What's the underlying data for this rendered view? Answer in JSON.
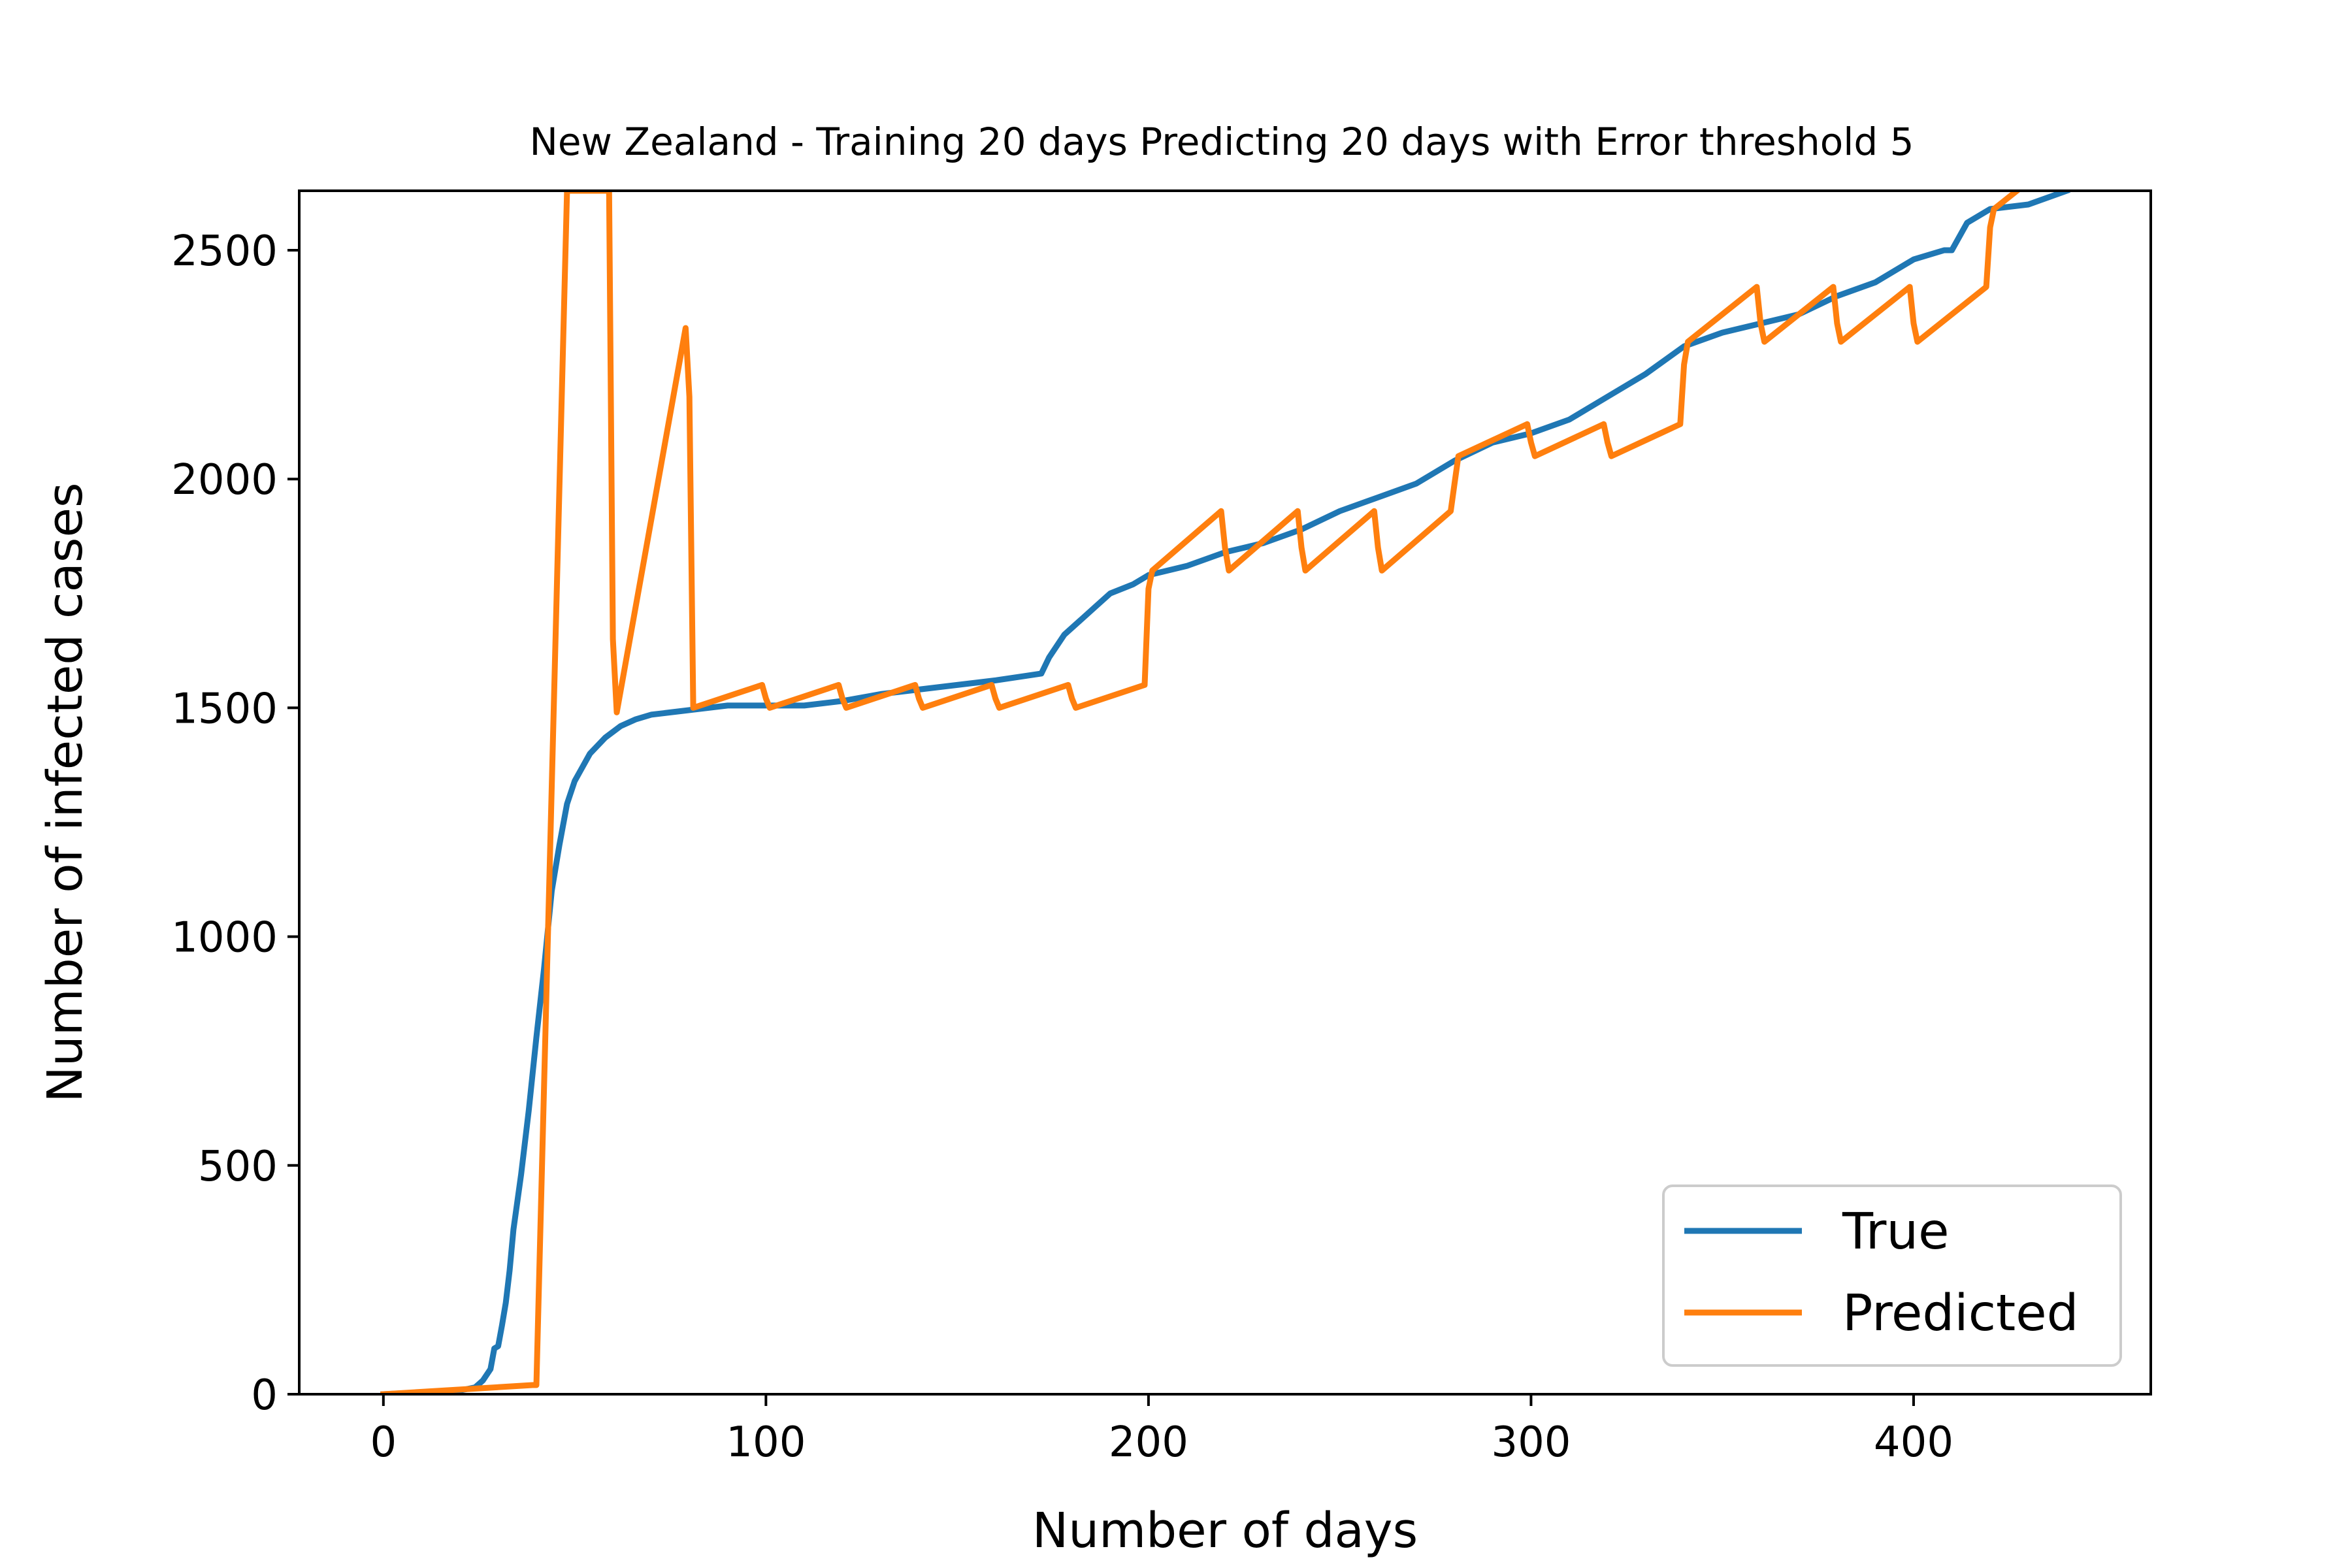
{
  "chart_data": {
    "type": "line",
    "title": "New Zealand - Training 20 days Predicting 20 days with Error threshold 5",
    "xlabel": "Number of days",
    "ylabel": "Number of infected cases",
    "xlim": [
      -22,
      462
    ],
    "ylim": [
      0,
      2630
    ],
    "xticks": [
      0,
      100,
      200,
      300,
      400
    ],
    "yticks": [
      0,
      500,
      1000,
      1500,
      2000,
      2500
    ],
    "grid": false,
    "legend_position": "lower-right",
    "series": [
      {
        "name": "True",
        "color": "#1f77b4",
        "x": [
          0,
          10,
          20,
          24,
          26,
          28,
          29,
          30,
          31,
          32,
          33,
          34,
          36,
          38,
          40,
          42,
          44,
          46,
          48,
          50,
          54,
          58,
          62,
          66,
          70,
          80,
          90,
          100,
          110,
          120,
          130,
          140,
          150,
          160,
          168,
          172,
          174,
          178,
          182,
          186,
          190,
          196,
          200,
          210,
          220,
          230,
          240,
          250,
          260,
          270,
          280,
          290,
          300,
          310,
          320,
          330,
          340,
          350,
          360,
          370,
          380,
          390,
          400,
          408,
          410,
          414,
          420,
          430,
          440
        ],
        "y": [
          0,
          4,
          8,
          15,
          30,
          55,
          100,
          105,
          150,
          200,
          270,
          360,
          480,
          620,
          780,
          930,
          1100,
          1200,
          1290,
          1340,
          1400,
          1435,
          1460,
          1475,
          1485,
          1495,
          1505,
          1505,
          1505,
          1515,
          1530,
          1540,
          1550,
          1560,
          1570,
          1575,
          1610,
          1660,
          1690,
          1720,
          1750,
          1770,
          1790,
          1810,
          1840,
          1860,
          1890,
          1930,
          1960,
          1990,
          2040,
          2080,
          2100,
          2130,
          2180,
          2230,
          2290,
          2320,
          2340,
          2360,
          2400,
          2430,
          2480,
          2500,
          2500,
          2560,
          2590,
          2600,
          2630
        ]
      },
      {
        "name": "Predicted",
        "color": "#ff7f0e",
        "x": [
          0,
          39,
          40,
          48,
          59,
          60,
          61,
          79,
          80,
          81,
          99,
          100,
          101,
          119,
          120,
          121,
          139,
          140,
          141,
          159,
          160,
          161,
          179,
          180,
          181,
          199,
          200,
          201,
          219,
          220,
          221,
          239,
          240,
          241,
          259,
          260,
          261,
          279,
          280,
          281,
          299,
          300,
          301,
          319,
          320,
          321,
          339,
          340,
          341,
          359,
          360,
          361,
          379,
          380,
          381,
          399,
          400,
          401,
          419,
          420,
          421,
          427
        ],
        "y": [
          0,
          20,
          20,
          2630,
          2630,
          1650,
          1490,
          2330,
          2180,
          1500,
          1550,
          1520,
          1500,
          1550,
          1520,
          1500,
          1550,
          1520,
          1500,
          1550,
          1520,
          1500,
          1550,
          1520,
          1500,
          1550,
          1760,
          1800,
          1930,
          1850,
          1800,
          1930,
          1850,
          1800,
          1930,
          1850,
          1800,
          1930,
          1990,
          2050,
          2120,
          2080,
          2050,
          2120,
          2080,
          2050,
          2120,
          2250,
          2300,
          2420,
          2340,
          2300,
          2420,
          2340,
          2300,
          2420,
          2340,
          2300,
          2420,
          2550,
          2590,
          2630
        ]
      }
    ]
  }
}
